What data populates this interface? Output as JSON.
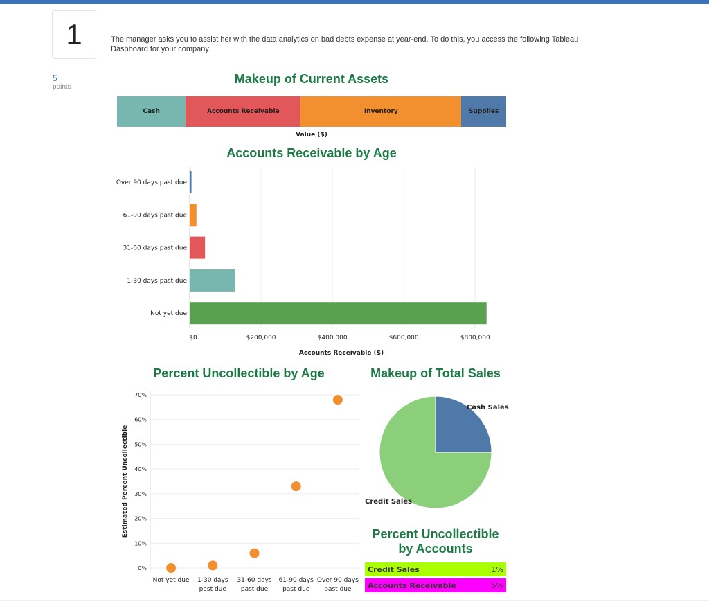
{
  "question": {
    "number": "1",
    "points_value": "5",
    "points_label": "points",
    "prompt": "The manager asks you to assist her with the data analytics on bad debts expense at year-end. To do this, you access the following Tableau Dashboard for your company."
  },
  "colors": {
    "accent": "#3b73b9",
    "title_green": "#1d7a46",
    "teal": "#77b7b0",
    "red": "#e2575a",
    "orange": "#f28f2f",
    "blue": "#4f79a8",
    "green": "#59a14f",
    "light_green": "#8ccf7a",
    "lime": "#aaff00",
    "magenta": "#ff00ff"
  },
  "chart_data": [
    {
      "type": "bar",
      "orientation": "stacked-horizontal",
      "title": "Makeup of Current Assets",
      "xlabel": "Value ($)",
      "categories": [
        "Cash",
        "Accounts Receivable",
        "Inventory",
        "Supplies"
      ],
      "values": [
        17.7,
        29.5,
        41.3,
        11.5
      ],
      "value_unit": "percent of total",
      "colors": [
        "#77b7b0",
        "#e2575a",
        "#f28f2f",
        "#4f79a8"
      ]
    },
    {
      "type": "bar",
      "orientation": "horizontal",
      "title": "Accounts Receivable by Age",
      "xlabel": "Accounts Receivable ($)",
      "categories": [
        "Over 90 days past due",
        "61-90 days past due",
        "31-60 days past due",
        "1-30 days past due",
        "Not yet due"
      ],
      "values": [
        5000,
        19000,
        43000,
        127000,
        832000
      ],
      "colors": [
        "#4f79a8",
        "#f28f2f",
        "#e2575a",
        "#77b7b0",
        "#59a14f"
      ],
      "xlim": [
        0,
        850000
      ],
      "xticks": [
        0,
        200000,
        400000,
        600000,
        800000
      ],
      "xtick_labels": [
        "$0",
        "$200,000",
        "$400,000",
        "$600,000",
        "$800,000"
      ]
    },
    {
      "type": "scatter",
      "title": "Percent Uncollectible by Age",
      "ylabel": "Estimated Percent Uncollectible",
      "categories": [
        "Not yet due",
        "1-30 days past due",
        "31-60 days past due",
        "61-90 days past due",
        "Over 90 days past due"
      ],
      "category_lines": [
        [
          "Not yet due"
        ],
        [
          "1-30 days",
          "past due"
        ],
        [
          "31-60 days",
          "past due"
        ],
        [
          "61-90 days",
          "past due"
        ],
        [
          "Over 90 days",
          "past due"
        ]
      ],
      "values": [
        0,
        1,
        6,
        33,
        68
      ],
      "ylim": [
        0,
        70
      ],
      "yticks": [
        0,
        10,
        20,
        30,
        40,
        50,
        60,
        70
      ],
      "ytick_labels": [
        "0%",
        "10%",
        "20%",
        "30%",
        "40%",
        "50%",
        "60%",
        "70%"
      ],
      "color": "#f28f2f"
    },
    {
      "type": "pie",
      "title": "Makeup of Total Sales",
      "categories": [
        "Cash Sales",
        "Credit Sales"
      ],
      "values": [
        25,
        75
      ],
      "colors": [
        "#4f79a8",
        "#8ccf7a"
      ]
    },
    {
      "type": "table",
      "title_lines": [
        "Percent Uncollectible",
        "by Accounts"
      ],
      "rows": [
        {
          "label": "Credit Sales",
          "value": "1%",
          "color": "#aaff00"
        },
        {
          "label": "Accounts Receivable",
          "value": "5%",
          "color": "#ff00ff"
        }
      ]
    }
  ]
}
